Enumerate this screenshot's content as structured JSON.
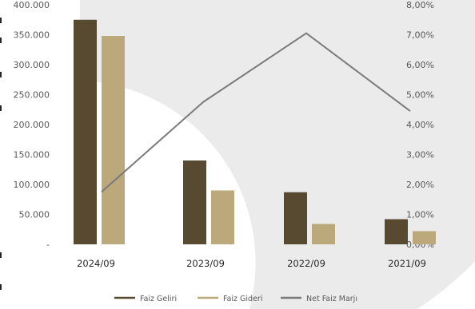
{
  "chart_data": {
    "type": "bar",
    "categories": [
      "2024/09",
      "2023/09",
      "2022/09",
      "2021/09"
    ],
    "series": [
      {
        "name": "Faiz Geliri",
        "kind": "bar",
        "axis": "left",
        "color": "#574a31",
        "values": [
          375000,
          140000,
          87000,
          42000
        ]
      },
      {
        "name": "Faiz Gideri",
        "kind": "bar",
        "axis": "left",
        "color": "#bba97c",
        "values": [
          348000,
          90000,
          34000,
          22000
        ]
      },
      {
        "name": "Net Faiz Marjı",
        "kind": "line",
        "axis": "right",
        "color": "#7a7a7a",
        "values": [
          1.75,
          4.75,
          7.05,
          4.45
        ]
      }
    ],
    "y_left": {
      "range": [
        0,
        400000
      ],
      "ticks": [
        "-",
        "50.000",
        "100.000",
        "150.000",
        "200.000",
        "250.000",
        "300.000",
        "350.000",
        "400.000"
      ]
    },
    "y_right": {
      "range": [
        0,
        8
      ],
      "unit": "%",
      "ticks": [
        "0,00%",
        "1,00%",
        "2,00%",
        "3,00%",
        "4,00%",
        "5,00%",
        "6,00%",
        "7,00%",
        "8,00%"
      ]
    },
    "legend": [
      "Faiz Geliri",
      "Faiz Gideri",
      "Net Faiz Marjı"
    ],
    "legend_position": "bottom",
    "grid": false,
    "background_decoration": "large light-gray arc behind plot"
  }
}
